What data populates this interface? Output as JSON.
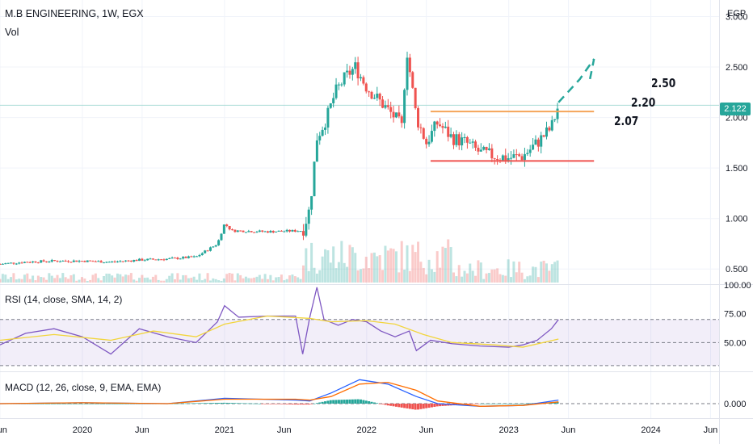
{
  "header": {
    "title": "M.B ENGINEERING, 1W, EGX",
    "volume_label": "Vol",
    "currency": "EGP"
  },
  "last_price": "2.122",
  "annotations": [
    {
      "text": "2.50"
    },
    {
      "text": "2.20"
    },
    {
      "text": "2.07"
    }
  ],
  "colors": {
    "up": "#26a69a",
    "down": "#ef5350",
    "resistance": "#f5a55a",
    "support": "#ef5350",
    "projection": "#26a69a",
    "rsi": "#7e57c2",
    "rsi_ma": "#f2d53c",
    "macd": "#2962ff",
    "signal": "#ff6d00"
  },
  "chart_data": [
    {
      "type": "line",
      "title": "M.B ENGINEERING, 1W, EGX",
      "subtitle": "Vol",
      "ylabel": "EGP",
      "ylim": [
        0.35,
        3.1
      ],
      "y_ticks": [
        0.5,
        1.0,
        1.5,
        2.0,
        2.5,
        3.0
      ],
      "y_tick_labels": [
        "0.500",
        "1.000",
        "1.500",
        "2.000",
        "2.500",
        "3.000"
      ],
      "x_tick_labels": [
        "Jun",
        "2020",
        "Jun",
        "2021",
        "Jun",
        "2022",
        "Jun",
        "2023",
        "Jun",
        "2024",
        "Jun"
      ],
      "x_tick_dates": [
        2019.42,
        2020.0,
        2020.42,
        2021.0,
        2021.42,
        2022.0,
        2022.42,
        2023.0,
        2023.42,
        2024.0,
        2024.42
      ],
      "x_range": [
        2019.42,
        2024.48
      ],
      "series": [
        {
          "name": "Close",
          "x": [
            2019.42,
            2019.6,
            2019.8,
            2020.0,
            2020.2,
            2020.4,
            2020.6,
            2020.8,
            2020.95,
            2021.0,
            2021.05,
            2021.3,
            2021.55,
            2021.6,
            2021.65,
            2021.72,
            2021.78,
            2021.85,
            2021.92,
            2022.0,
            2022.1,
            2022.2,
            2022.25,
            2022.28,
            2022.32,
            2022.35,
            2022.42,
            2022.5,
            2022.6,
            2022.7,
            2022.8,
            2022.9,
            2023.0,
            2023.1,
            2023.2,
            2023.3,
            2023.35
          ],
          "y": [
            0.55,
            0.57,
            0.58,
            0.58,
            0.57,
            0.59,
            0.6,
            0.62,
            0.75,
            0.95,
            0.88,
            0.87,
            0.88,
            1.1,
            1.8,
            2.0,
            2.25,
            2.4,
            2.5,
            2.3,
            2.15,
            2.0,
            1.9,
            2.7,
            2.3,
            2.0,
            1.75,
            1.95,
            1.8,
            1.75,
            1.65,
            1.62,
            1.6,
            1.62,
            1.75,
            1.9,
            2.122
          ]
        }
      ],
      "lines": [
        {
          "label": "2.07",
          "y": 2.06,
          "x_start": 2022.45,
          "x_end": 2023.6
        },
        {
          "label": "support",
          "y": 1.57,
          "x_start": 2022.45,
          "x_end": 2023.6
        }
      ],
      "projection": {
        "x": [
          2023.35,
          2023.5,
          2023.6,
          2023.57
        ],
        "y": [
          2.15,
          2.38,
          2.58,
          2.37
        ]
      },
      "grid": true
    },
    {
      "type": "line",
      "title": "RSI (14, close, SMA, 14, 2)",
      "ylim": [
        25,
        100
      ],
      "y_ticks": [
        100,
        75,
        50
      ],
      "y_tick_labels": [
        "100.00",
        "75.00",
        "50.00"
      ],
      "bands": [
        30,
        70
      ],
      "series": [
        {
          "name": "RSI",
          "x": [
            2019.42,
            2019.6,
            2019.8,
            2020.0,
            2020.2,
            2020.4,
            2020.6,
            2020.8,
            2020.95,
            2021.0,
            2021.1,
            2021.3,
            2021.5,
            2021.55,
            2021.6,
            2021.65,
            2021.7,
            2021.8,
            2021.9,
            2022.0,
            2022.1,
            2022.2,
            2022.3,
            2022.35,
            2022.45,
            2022.6,
            2022.8,
            2023.0,
            2023.1,
            2023.2,
            2023.3,
            2023.35
          ],
          "y": [
            48,
            58,
            62,
            55,
            40,
            62,
            55,
            50,
            68,
            82,
            72,
            73,
            73,
            40,
            72,
            98,
            70,
            65,
            70,
            68,
            60,
            55,
            60,
            43,
            52,
            49,
            47,
            46,
            48,
            52,
            62,
            70
          ]
        },
        {
          "name": "RSI-based MA",
          "x": [
            2019.42,
            2019.8,
            2020.2,
            2020.5,
            2020.8,
            2021.0,
            2021.3,
            2021.6,
            2021.75,
            2022.0,
            2022.2,
            2022.4,
            2022.6,
            2022.9,
            2023.1,
            2023.35
          ],
          "y": [
            52,
            57,
            52,
            60,
            55,
            66,
            73,
            71,
            68,
            69,
            66,
            57,
            50,
            48,
            46,
            53
          ]
        }
      ]
    },
    {
      "type": "bar",
      "title": "MACD (12, 26, close, 9, EMA, EMA)",
      "y_ticks": [
        0
      ],
      "y_tick_labels": [
        "0.000"
      ],
      "series": [
        {
          "name": "MACD",
          "x": [
            2019.42,
            2020.0,
            2020.6,
            2021.0,
            2021.5,
            2021.6,
            2021.75,
            2021.95,
            2022.15,
            2022.35,
            2022.5,
            2022.8,
            2023.1,
            2023.35
          ],
          "y": [
            0.0,
            0.01,
            0.0,
            0.06,
            0.04,
            0.03,
            0.12,
            0.27,
            0.22,
            0.08,
            0.0,
            -0.03,
            -0.02,
            0.04
          ]
        },
        {
          "name": "Signal",
          "x": [
            2019.42,
            2020.0,
            2020.6,
            2021.0,
            2021.5,
            2021.6,
            2021.75,
            2021.95,
            2022.15,
            2022.35,
            2022.5,
            2022.8,
            2023.1,
            2023.35
          ],
          "y": [
            0.0,
            0.01,
            0.0,
            0.05,
            0.05,
            0.04,
            0.08,
            0.22,
            0.24,
            0.15,
            0.03,
            -0.03,
            -0.02,
            0.02
          ]
        }
      ]
    }
  ]
}
